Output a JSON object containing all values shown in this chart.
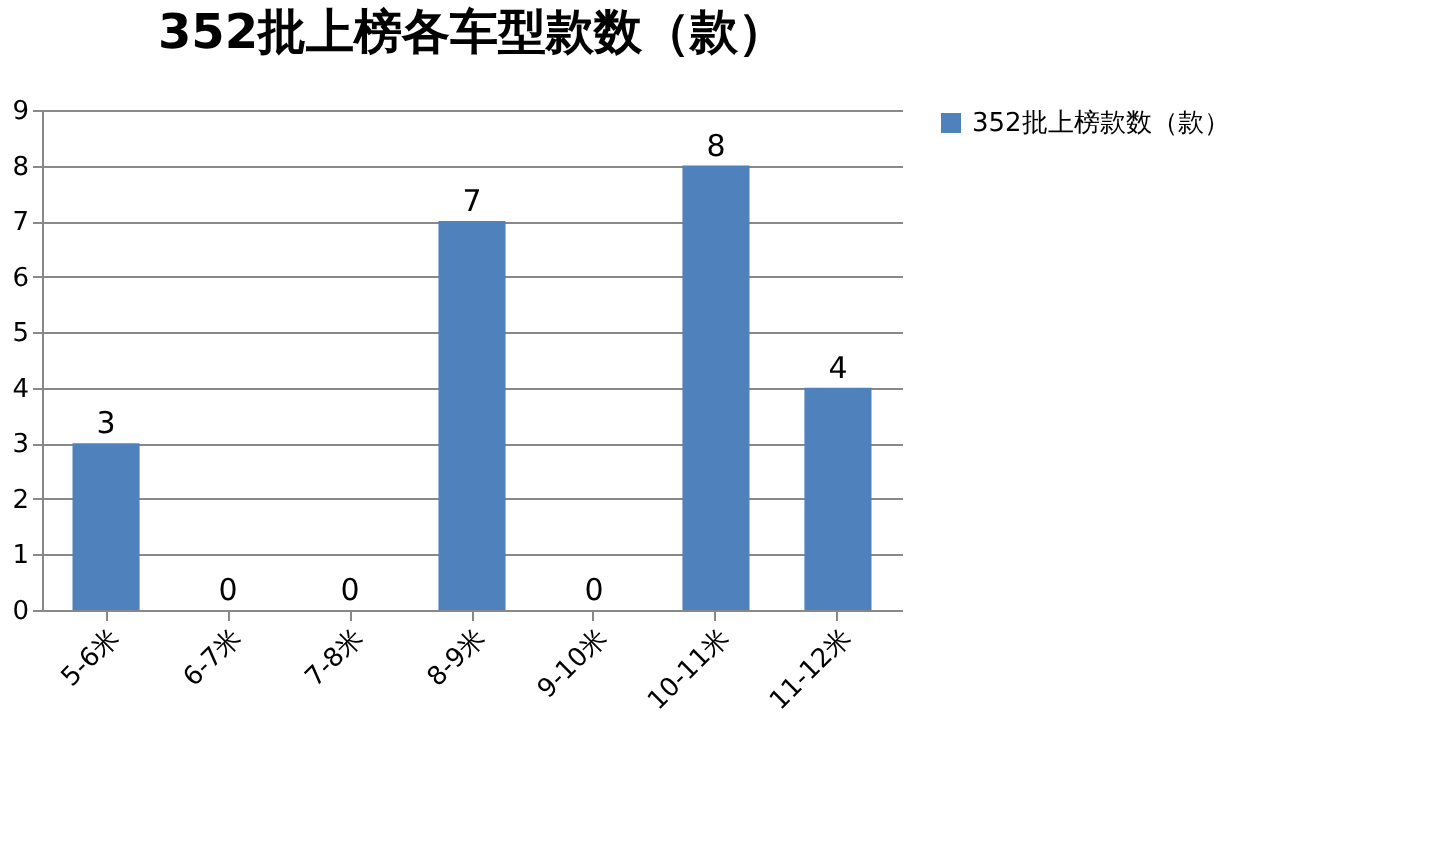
{
  "chart_data": {
    "type": "bar",
    "title": "352批上榜各车型款数（款）",
    "categories": [
      "5-6米",
      "6-7米",
      "7-8米",
      "8-9米",
      "9-10米",
      "10-11米",
      "11-12米"
    ],
    "series": [
      {
        "name": "352批上榜款数（款）",
        "color": "#4f81bd",
        "values": [
          3,
          0,
          0,
          7,
          0,
          8,
          4
        ]
      }
    ],
    "ylim": [
      0,
      9
    ],
    "yticks": [
      0,
      1,
      2,
      3,
      4,
      5,
      6,
      7,
      8,
      9
    ],
    "grid": "y",
    "legend": "right",
    "data_labels": true
  }
}
